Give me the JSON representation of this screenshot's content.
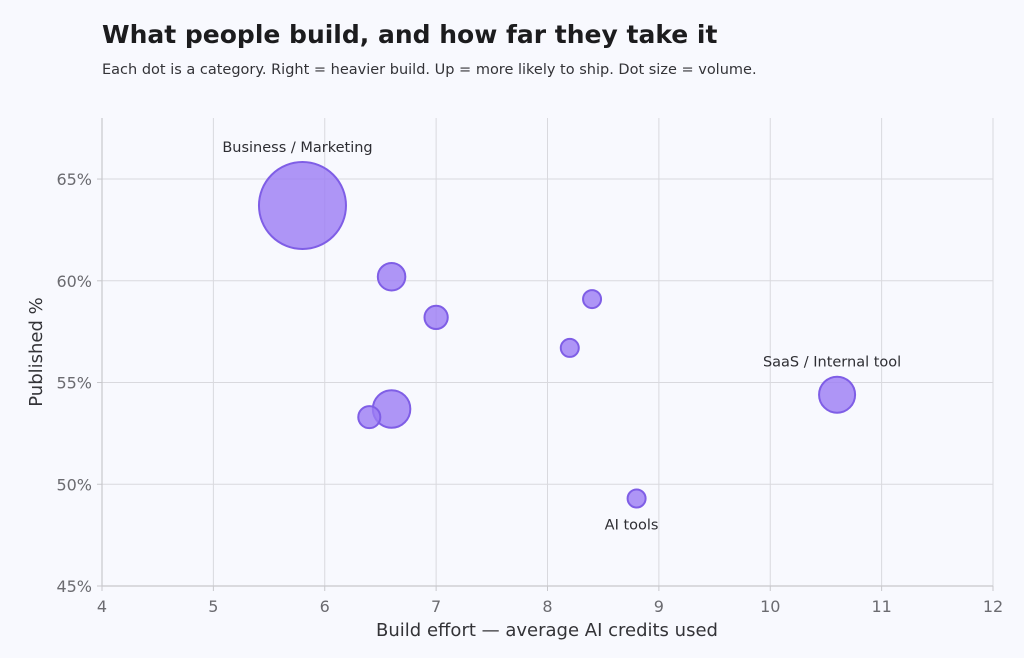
{
  "chart_data": {
    "type": "scatter",
    "title": "What people build, and how far they take it",
    "subtitle": "Each dot is a category. Right = heavier build. Up = more likely to ship. Dot size = volume.",
    "xlabel": "Build effort — average AI credits used",
    "ylabel": "Published %",
    "xlim": [
      4,
      12
    ],
    "ylim": [
      45,
      68
    ],
    "x_ticks": [
      4,
      5,
      6,
      7,
      8,
      9,
      10,
      11,
      12
    ],
    "x_tick_labels": [
      "4",
      "5",
      "6",
      "7",
      "8",
      "9",
      "10",
      "11",
      "12"
    ],
    "y_ticks": [
      45,
      50,
      55,
      60,
      65
    ],
    "y_tick_labels": [
      "45%",
      "50%",
      "55%",
      "60%",
      "65%"
    ],
    "grid": true,
    "point_color": "#9b7cf4",
    "point_edge_color": "#7f5ee6",
    "points": [
      {
        "x": 5.8,
        "y": 63.7,
        "size": 7000,
        "label": "Business / Marketing",
        "label_pos": "above"
      },
      {
        "x": 6.6,
        "y": 60.2,
        "size": 700,
        "label": ""
      },
      {
        "x": 7.0,
        "y": 58.2,
        "size": 500,
        "label": ""
      },
      {
        "x": 8.4,
        "y": 59.1,
        "size": 300,
        "label": ""
      },
      {
        "x": 8.2,
        "y": 56.7,
        "size": 300,
        "label": ""
      },
      {
        "x": 6.4,
        "y": 53.3,
        "size": 450,
        "label": ""
      },
      {
        "x": 6.6,
        "y": 53.7,
        "size": 1300,
        "label": ""
      },
      {
        "x": 10.6,
        "y": 54.4,
        "size": 1200,
        "label": "SaaS / Internal tool",
        "label_pos": "above"
      },
      {
        "x": 8.8,
        "y": 49.3,
        "size": 300,
        "label": "AI tools",
        "label_pos": "below"
      }
    ]
  }
}
